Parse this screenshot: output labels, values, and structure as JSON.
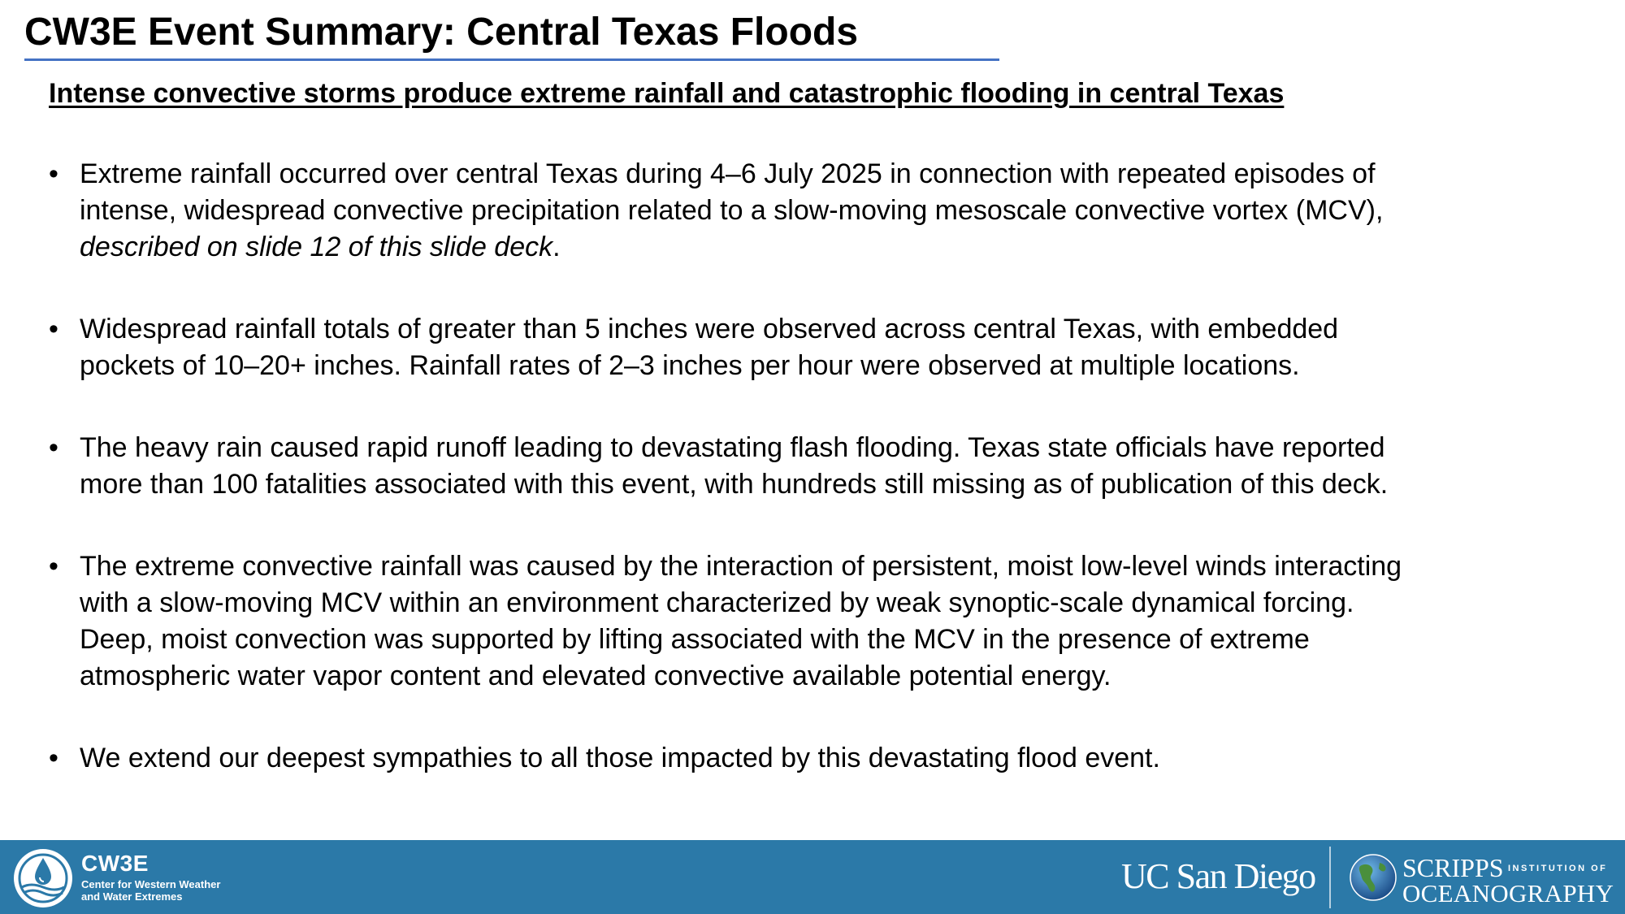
{
  "title": "CW3E Event Summary: Central Texas Floods",
  "subtitle": "Intense convective storms produce extreme rainfall and catastrophic flooding in central Texas",
  "bullet_marker": "•",
  "bullets": [
    {
      "lines": [
        "Extreme rainfall occurred over central Texas during 4–6 July 2025 in connection with repeated episodes of",
        "intense, widespread convective precipitation related to a slow-moving mesoscale convective vortex (MCV),"
      ],
      "italic_line": "described on slide 12 of this slide deck",
      "italic_suffix": "."
    },
    {
      "lines": [
        "Widespread rainfall totals of greater than 5 inches were observed across central Texas, with embedded",
        "pockets of 10–20+ inches. Rainfall rates of 2–3 inches per hour were observed at multiple locations."
      ]
    },
    {
      "lines": [
        "The heavy rain caused rapid runoff leading to devastating flash flooding. Texas state officials have reported",
        "more than 100 fatalities associated with this event, with hundreds still missing as of publication of this deck."
      ]
    },
    {
      "lines": [
        "The extreme convective rainfall was caused by the interaction of persistent, moist low-level winds interacting",
        "with a slow-moving MCV within an environment characterized by weak synoptic-scale dynamical forcing.",
        "Deep, moist convection was supported by lifting associated with the MCV in the presence of extreme",
        "atmospheric water vapor content and elevated convective available potential energy."
      ]
    },
    {
      "lines": [
        "We extend our deepest sympathies to all those impacted by this devastating flood event."
      ]
    }
  ],
  "footer": {
    "background_color": "#2b79a8",
    "cw3e": {
      "name": "CW3E",
      "desc_line1": "Center for Western Weather",
      "desc_line2": "and Water Extremes",
      "logo_icon": "cw3e-water-drop-logo-icon"
    },
    "ucsd": {
      "text": "UC San Diego"
    },
    "scripps": {
      "line1": "SCRIPPS",
      "line1_small": "INSTITUTION OF",
      "line2": "OCEANOGRAPHY",
      "logo_icon": "globe-icon"
    }
  }
}
